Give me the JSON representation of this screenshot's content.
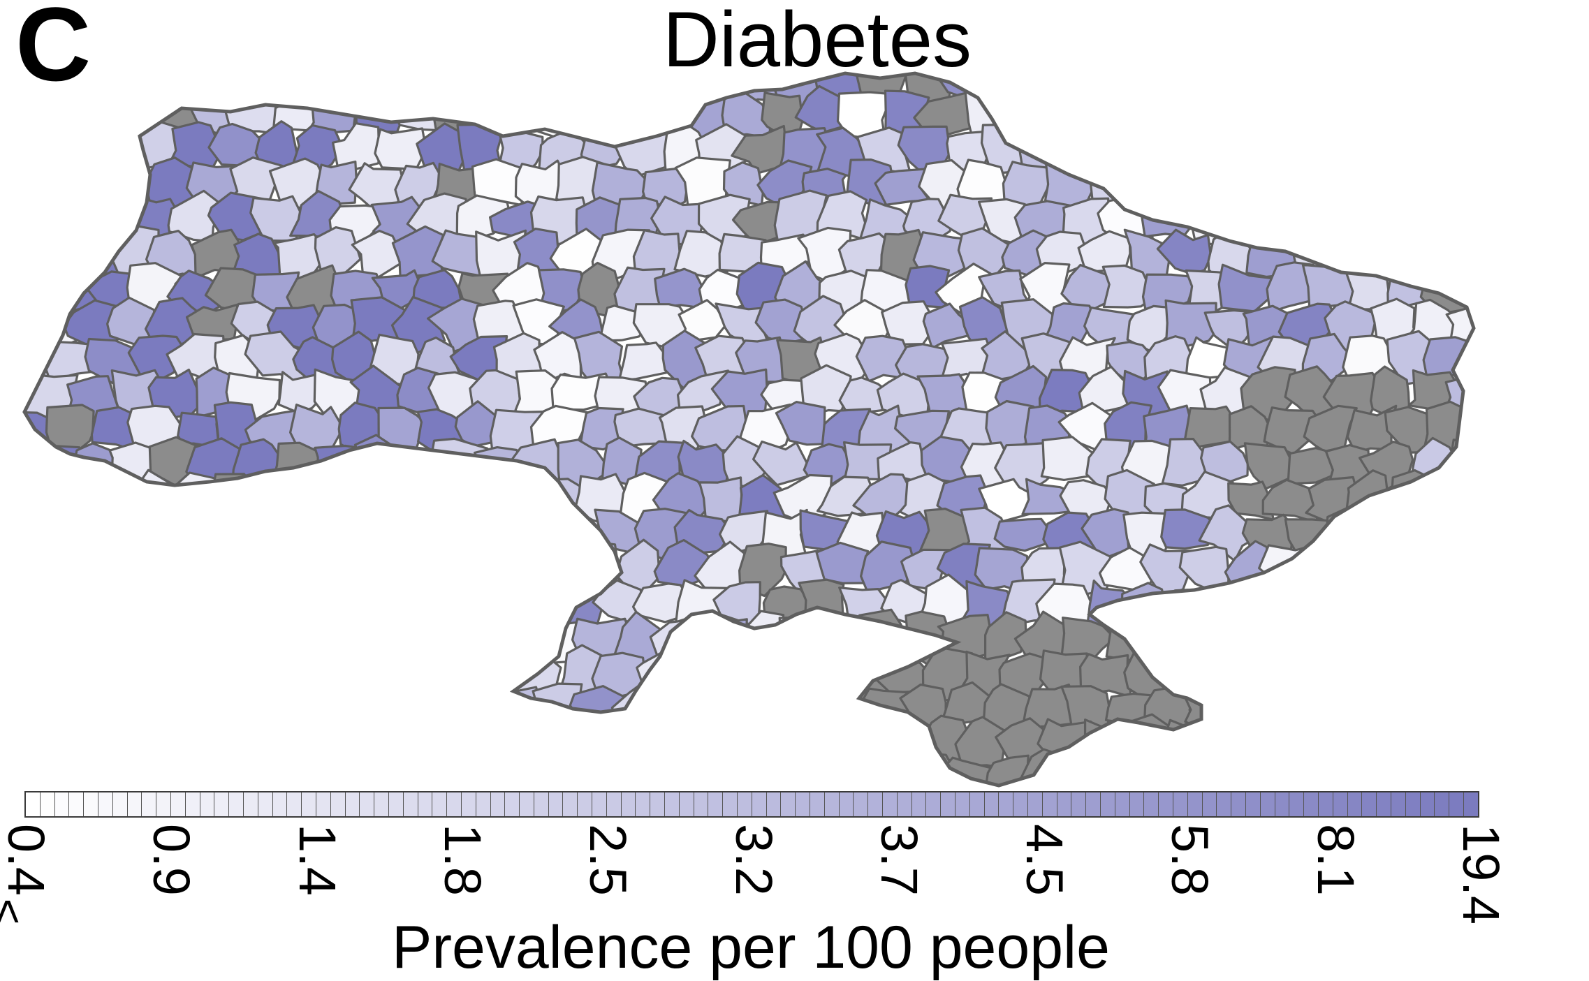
{
  "panel_letter": "C",
  "title": "Diabetes",
  "legend": {
    "title": "Prevalence per 100 people",
    "tick_labels": [
      "0.4",
      "0.9",
      "1.4",
      "1.8",
      "2.5",
      "3.2",
      "3.7",
      "4.5",
      "5.8",
      "8.1",
      "19.4"
    ],
    "lower_bound_symbol": "≤",
    "scale_colors": [
      "#ffffff",
      "#7b7bbf"
    ],
    "no_data_color": "#8c8c8c",
    "border_color": "#5f5f5f"
  }
}
